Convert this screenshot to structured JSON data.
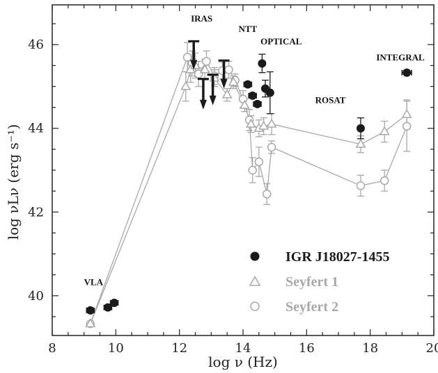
{
  "chart_data": {
    "type": "scatter",
    "title": "",
    "xlabel": "log ν    (Hz)",
    "ylabel": "log νLν (erg s⁻¹)",
    "xlim": [
      8,
      20
    ],
    "ylim": [
      39.05,
      46.95
    ],
    "xticks": [
      "8",
      "10",
      "12",
      "14",
      "16",
      "18",
      "20"
    ],
    "yticks": [
      "40",
      "42",
      "44",
      "46"
    ],
    "grid": false,
    "legend_position": "bottom-right",
    "colors": {
      "igr": "#1a1a1a",
      "seyfert": "#a8a8a8",
      "axis": "#222222"
    },
    "band_labels": [
      {
        "text": "VLA",
        "x": 9.3,
        "y": 40.25
      },
      {
        "text": "IRAS",
        "x": 12.7,
        "y": 46.55
      },
      {
        "text": "NTT",
        "x": 14.15,
        "y": 46.3
      },
      {
        "text": "OPTICAL",
        "x": 15.2,
        "y": 46.0
      },
      {
        "text": "ROSAT",
        "x": 16.75,
        "y": 44.6
      },
      {
        "text": "INTEGRAL",
        "x": 18.95,
        "y": 45.62
      }
    ],
    "series": [
      {
        "name": "IGR J18027-1455",
        "marker": "filled-circle",
        "points": [
          {
            "x": 9.2,
            "y": 39.65,
            "xerr": 0.12
          },
          {
            "x": 9.75,
            "y": 39.72,
            "xerr": 0.12
          },
          {
            "x": 9.95,
            "y": 39.83,
            "xerr": 0.12
          },
          {
            "x": 14.15,
            "y": 45.05,
            "xerr": 0.12
          },
          {
            "x": 14.3,
            "y": 44.78,
            "xerr": 0.12
          },
          {
            "x": 14.45,
            "y": 44.58,
            "xerr": 0.12
          },
          {
            "x": 14.6,
            "y": 45.55,
            "yerr": 0.22
          },
          {
            "x": 14.7,
            "y": 44.95,
            "yerr": 0.2
          },
          {
            "x": 14.85,
            "y": 44.85,
            "yerr": 0.5
          },
          {
            "x": 17.7,
            "y": 44.0,
            "yerr": 0.25
          },
          {
            "x": 19.15,
            "y": 45.33,
            "xerr": 0.15
          }
        ],
        "upper_limits": [
          {
            "x": 12.45,
            "y": 46.08,
            "to": 45.4
          },
          {
            "x": 12.75,
            "y": 45.18,
            "to": 44.45
          },
          {
            "x": 13.05,
            "y": 45.28,
            "to": 44.55
          },
          {
            "x": 13.4,
            "y": 45.62,
            "to": 44.95
          }
        ]
      },
      {
        "name": "Seyfert 1",
        "marker": "open-triangle",
        "points": [
          {
            "x": 9.2,
            "y": 39.33,
            "err": 0.05
          },
          {
            "x": 12.2,
            "y": 45.0,
            "err": 0.35
          },
          {
            "x": 12.35,
            "y": 45.4,
            "err": 0.3
          },
          {
            "x": 12.5,
            "y": 45.5,
            "err": 0.3
          },
          {
            "x": 12.8,
            "y": 45.4,
            "err": 0.25
          },
          {
            "x": 13.1,
            "y": 45.2,
            "err": 0.2
          },
          {
            "x": 13.5,
            "y": 44.8,
            "err": 0.15
          },
          {
            "x": 13.7,
            "y": 45.1,
            "err": 0.15
          },
          {
            "x": 14.05,
            "y": 44.55,
            "err": 0.15
          },
          {
            "x": 14.25,
            "y": 44.1,
            "err": 0.2
          },
          {
            "x": 14.5,
            "y": 44.0,
            "err": 0.2
          },
          {
            "x": 14.65,
            "y": 44.05,
            "err": 0.2
          },
          {
            "x": 14.9,
            "y": 44.1,
            "err": 0.25
          },
          {
            "x": 17.7,
            "y": 43.62,
            "err": 0.2
          },
          {
            "x": 18.45,
            "y": 43.92,
            "err": 0.25
          },
          {
            "x": 19.15,
            "y": 44.33,
            "err": 0.35
          }
        ]
      },
      {
        "name": "Seyfert 2",
        "marker": "open-circle",
        "points": [
          {
            "x": 9.2,
            "y": 39.33,
            "err": 0.05
          },
          {
            "x": 12.25,
            "y": 45.7,
            "err": 0.35
          },
          {
            "x": 12.4,
            "y": 45.55,
            "err": 0.3
          },
          {
            "x": 12.6,
            "y": 45.3,
            "err": 0.3
          },
          {
            "x": 12.85,
            "y": 45.6,
            "err": 0.25
          },
          {
            "x": 13.1,
            "y": 45.25,
            "err": 0.2
          },
          {
            "x": 13.35,
            "y": 45.38,
            "err": 0.2
          },
          {
            "x": 13.55,
            "y": 45.4,
            "err": 0.2
          },
          {
            "x": 13.75,
            "y": 45.15,
            "err": 0.15
          },
          {
            "x": 14.0,
            "y": 44.7,
            "err": 0.2
          },
          {
            "x": 14.2,
            "y": 44.2,
            "err": 0.25
          },
          {
            "x": 14.3,
            "y": 43.0,
            "err": 0.3
          },
          {
            "x": 14.5,
            "y": 43.2,
            "err": 0.35
          },
          {
            "x": 14.75,
            "y": 42.43,
            "err": 0.25
          },
          {
            "x": 14.9,
            "y": 43.55,
            "err": 0.15
          },
          {
            "x": 17.7,
            "y": 42.63,
            "err": 0.25
          },
          {
            "x": 18.45,
            "y": 42.75,
            "err": 0.25
          },
          {
            "x": 19.15,
            "y": 44.05,
            "err": 0.6
          }
        ]
      }
    ]
  }
}
